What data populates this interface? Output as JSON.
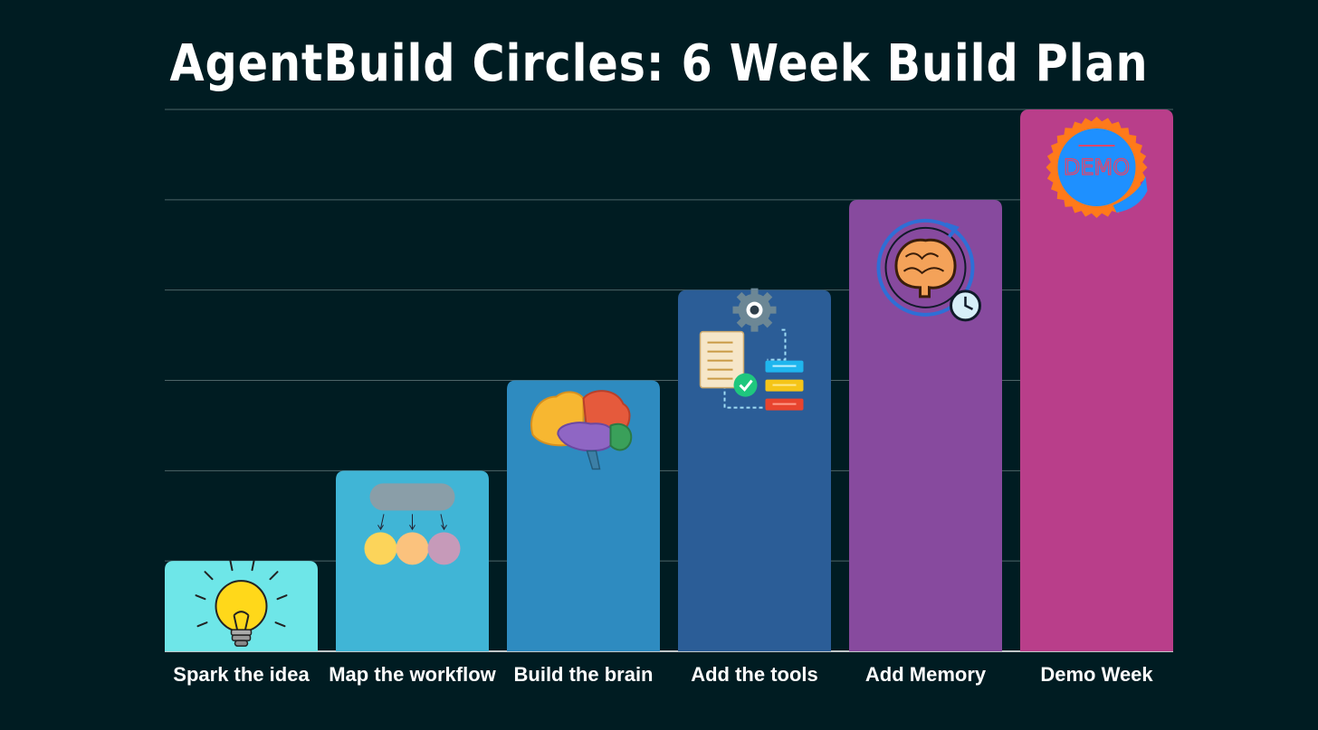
{
  "chart_data": {
    "type": "bar",
    "title": "AgentBuild Circles: 6 Week Build Plan",
    "categories": [
      "Spark the idea",
      "Map the workflow",
      "Build the brain",
      "Add the tools",
      "Add Memory",
      "Demo Week"
    ],
    "values": [
      1,
      2,
      3,
      4,
      5,
      6
    ],
    "ylim": [
      0,
      6
    ],
    "grid": true,
    "colors": [
      "#6ee6e8",
      "#40b5d6",
      "#2e8bc0",
      "#2b5d97",
      "#874a9e",
      "#b93e8a"
    ],
    "icons": [
      "lightbulb-icon",
      "workflow-icon",
      "brain-icon",
      "tools-icon",
      "memory-icon",
      "demo-badge-icon"
    ]
  },
  "demo_badge_text": "DEMO"
}
